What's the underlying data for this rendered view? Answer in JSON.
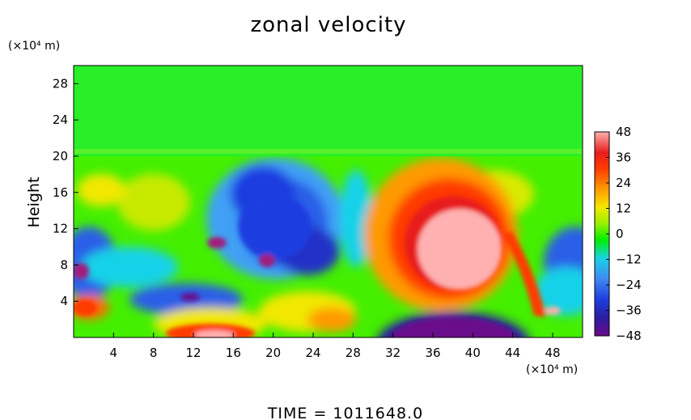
{
  "chart_data": {
    "type": "heatmap",
    "title": "zonal velocity",
    "ylabel": "Height",
    "x_unit": "(×10⁴ m)",
    "y_unit": "(×10⁴ m)",
    "xlim": [
      0,
      51
    ],
    "ylim": [
      0,
      30
    ],
    "x_ticks": [
      4,
      8,
      12,
      16,
      20,
      24,
      28,
      32,
      36,
      40,
      44,
      48
    ],
    "y_ticks": [
      4,
      8,
      12,
      16,
      20,
      24,
      28
    ],
    "colorbar": {
      "range": [
        -48,
        48
      ],
      "ticks": [
        48,
        36,
        24,
        12,
        0,
        -12,
        -24,
        -36,
        -48
      ],
      "colors": [
        "#6a0a8a",
        "#2a1ea0",
        "#1f3ee0",
        "#3f8af0",
        "#19d2e8",
        "#00ef00",
        "#9aef00",
        "#f2e800",
        "#ff9a00",
        "#ff3a00",
        "#e81e1e",
        "#ffb0b0"
      ]
    },
    "features": [
      {
        "type": "jet",
        "x": 38.5,
        "y": 10.8,
        "value": 48
      },
      {
        "type": "surface-westward",
        "x": 39,
        "y": 0.5,
        "value": -48
      },
      {
        "type": "westward-region",
        "x": 20,
        "y": 11,
        "value": -38
      },
      {
        "type": "westward-region",
        "x": 1,
        "y": 7.5,
        "value": -42
      },
      {
        "type": "westward-region",
        "x": 50.5,
        "y": 7,
        "value": -40
      },
      {
        "type": "eastward-region",
        "x": 13,
        "y": 0.6,
        "value": 36
      }
    ],
    "annotation": "TIME = 1011648.0"
  }
}
